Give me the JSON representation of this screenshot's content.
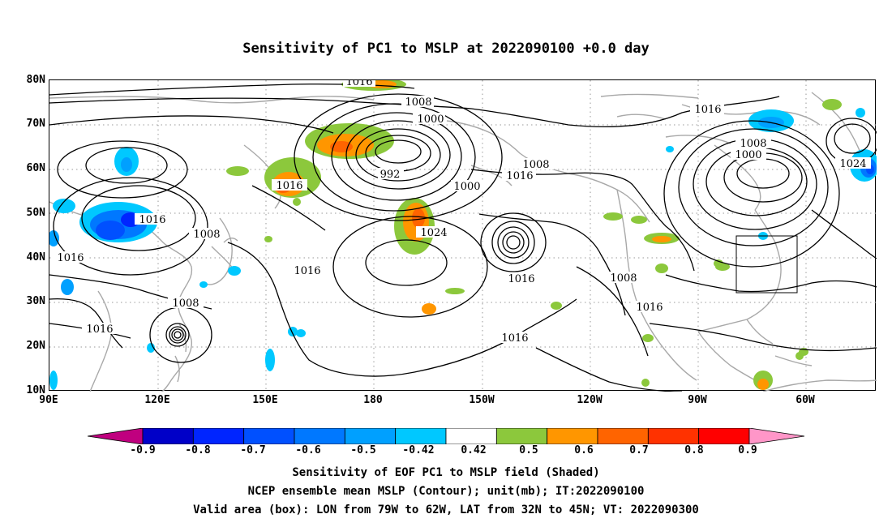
{
  "title": "Sensitivity of PC1 to MSLP at 2022090100 +0.0 day",
  "lat_labels": [
    "80N",
    "70N",
    "60N",
    "50N",
    "40N",
    "30N",
    "20N",
    "10N"
  ],
  "lon_labels": [
    "90E",
    "120E",
    "150E",
    "180",
    "150W",
    "120W",
    "90W",
    "60W"
  ],
  "colorbar": {
    "colors": [
      "#c0007f",
      "#0000c8",
      "#0025ff",
      "#0050ff",
      "#0078ff",
      "#00a0ff",
      "#00c8ff",
      "#ffffff",
      "#8cc83c",
      "#ff9600",
      "#ff6400",
      "#ff3200",
      "#ff0000",
      "#ff96c8"
    ],
    "labels": [
      "-0.9",
      "-0.8",
      "-0.7",
      "-0.6",
      "-0.5",
      "-0.42",
      "0.42",
      "0.5",
      "0.6",
      "0.7",
      "0.8",
      "0.9"
    ]
  },
  "contour_labels": [
    "1016",
    "1008",
    "1000",
    "992",
    "1016",
    "1000",
    "1016",
    "1016",
    "1008",
    "1016",
    "1016",
    "1008",
    "1016",
    "1024",
    "1008",
    "1016",
    "1016",
    "1008",
    "1016",
    "1016",
    "1008",
    "1000",
    "1024"
  ],
  "valid_box": {
    "lon_range": [
      "79W",
      "62W"
    ],
    "lat_range": [
      "32N",
      "45N"
    ]
  },
  "captions": [
    "Sensitivity of EOF PC1 to MSLP field (Shaded)",
    "NCEP ensemble mean MSLP (Contour); unit(mb); IT:2022090100",
    "Valid area (box): LON from 79W to 62W, LAT from 32N to 45N; VT: 2022090300"
  ]
}
